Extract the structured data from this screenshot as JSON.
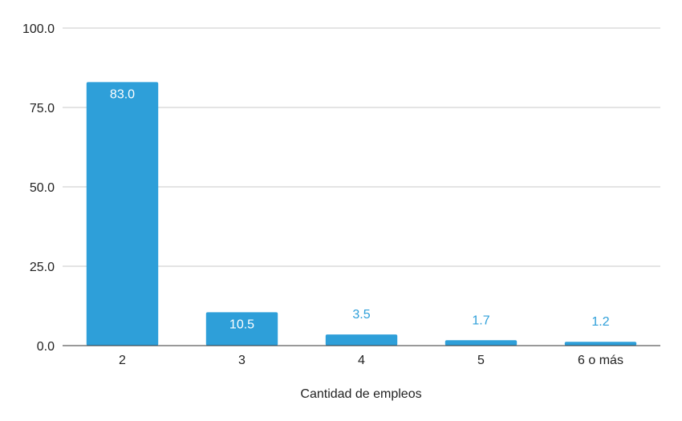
{
  "chart_data": {
    "type": "bar",
    "categories": [
      "2",
      "3",
      "4",
      "5",
      "6 o más"
    ],
    "values": [
      83.0,
      10.5,
      3.5,
      1.7,
      1.2
    ],
    "value_labels": [
      "83.0",
      "10.5",
      "3.5",
      "1.7",
      "1.2"
    ],
    "xlabel": "Cantidad de empleos",
    "ylabel": "",
    "ylim": [
      0,
      100
    ],
    "yticks": [
      "0.0",
      "25.0",
      "50.0",
      "75.0",
      "100.0"
    ],
    "grid": true,
    "legend": "none",
    "colors": {
      "bar": "#2e9fd9",
      "label_inside": "#ffffff",
      "label_outside": "#2e9fd9",
      "grid": "#c8c8c8",
      "axis": "#333333"
    }
  }
}
